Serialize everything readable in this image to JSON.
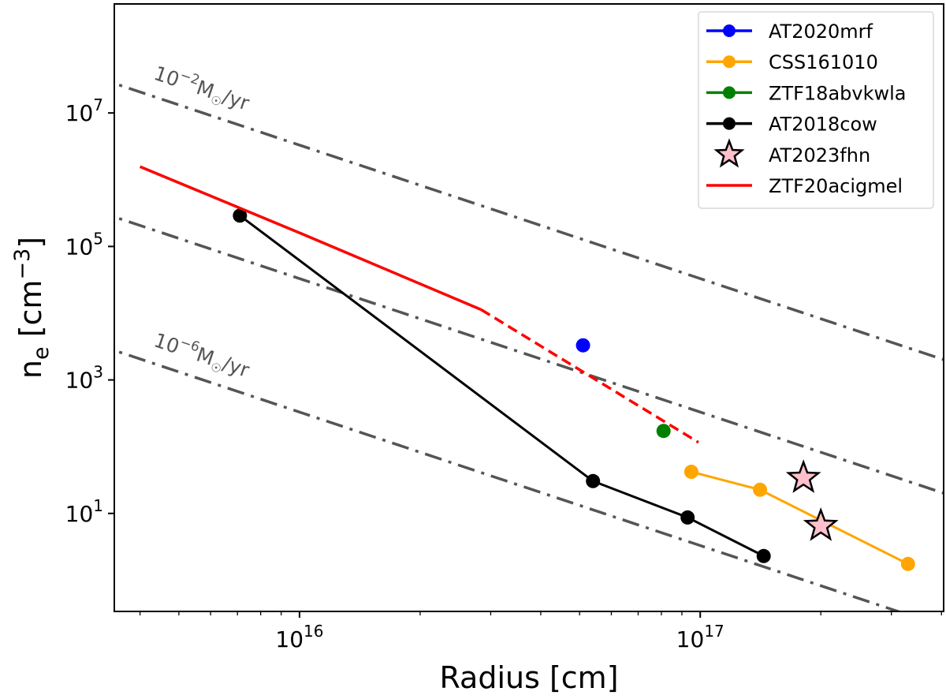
{
  "chart_data": {
    "type": "scatter",
    "xlabel": "Radius [cm]",
    "ylabel_base": "n",
    "ylabel_sub": "e",
    "ylabel_unit": " [cm",
    "ylabel_unit_exp": "−3",
    "ylabel_close": "]",
    "x_scale": "log",
    "y_scale": "log",
    "xlim": [
      3450000000000000.0,
      4.05e+17
    ],
    "ylim": [
      0.34,
      430000000.0
    ],
    "x_ticks": [
      {
        "value": 1e+16,
        "base": "10",
        "exp": "16"
      },
      {
        "value": 1e+17,
        "base": "10",
        "exp": "17"
      }
    ],
    "y_ticks": [
      {
        "value": 10,
        "base": "10",
        "exp": "1"
      },
      {
        "value": 1000,
        "base": "10",
        "exp": "3"
      },
      {
        "value": 100000,
        "base": "10",
        "exp": "5"
      },
      {
        "value": 10000000,
        "base": "10",
        "exp": "7"
      }
    ],
    "grid": false,
    "legend_position": "top-right",
    "series": [
      {
        "name": "AT2020mrf",
        "color": "#0000ff",
        "marker": "circle",
        "line": true,
        "x": [
          5.1e+16
        ],
        "y": [
          3300.0
        ]
      },
      {
        "name": "CSS161010",
        "color": "#ffa500",
        "marker": "circle",
        "line": true,
        "x": [
          9.5e+16,
          1.41e+17,
          3.3e+17
        ],
        "y": [
          42,
          22.6,
          1.75
        ]
      },
      {
        "name": "ZTF18abvkwla",
        "color": "#008000",
        "marker": "circle",
        "line": true,
        "x": [
          8.1e+16
        ],
        "y": [
          172
        ]
      },
      {
        "name": "AT2018cow",
        "color": "#000000",
        "marker": "circle",
        "line": true,
        "x": [
          7100000000000000.0,
          5.4e+16,
          9.3e+16,
          1.44e+17
        ],
        "y": [
          290000.0,
          30.5,
          8.7,
          2.3
        ]
      },
      {
        "name": "AT2023fhn",
        "color": "#ffc0cb",
        "marker": "star",
        "line": false,
        "x": [
          1.81e+17,
          2e+17
        ],
        "y": [
          34,
          6.5
        ]
      },
      {
        "name": "ZTF20acigmel",
        "color": "#ff0000",
        "marker": "none",
        "line": true,
        "segments": [
          {
            "style": "solid",
            "x": [
              4000000000000000.0,
              1e+16,
              2.84e+16
            ],
            "y": [
              1570000.0,
              160000.0,
              11300.0
            ]
          },
          {
            "style": "dashed",
            "x": [
              2.84e+16,
              9.9e+16
            ],
            "y": [
              11300.0,
              116
            ]
          }
        ]
      }
    ],
    "reference_lines": [
      {
        "label_base": "10",
        "label_exp": "−2",
        "label_unit": "M",
        "label_sun": "☉",
        "label_tail": "/yr",
        "mdot": 0.01,
        "n_at_1e16": 3300000.0,
        "slope": -2,
        "color": "#555555",
        "style": "dashdot",
        "labeled": true
      },
      {
        "label_base": "",
        "label_exp": "",
        "label_unit": "",
        "label_sun": "",
        "label_tail": "",
        "mdot": 0.0001,
        "n_at_1e16": 33000.0,
        "slope": -2,
        "color": "#555555",
        "style": "dashdot",
        "labeled": false
      },
      {
        "label_base": "10",
        "label_exp": "−6",
        "label_unit": "M",
        "label_sun": "☉",
        "label_tail": "/yr",
        "mdot": 1e-06,
        "n_at_1e16": 330.0,
        "slope": -2,
        "color": "#555555",
        "style": "dashdot",
        "labeled": true
      }
    ]
  }
}
